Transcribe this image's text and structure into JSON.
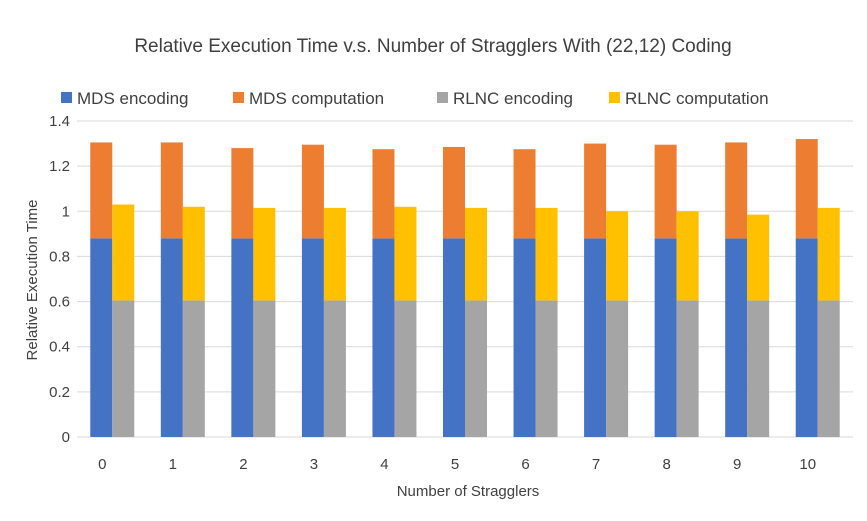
{
  "chart_data": {
    "type": "bar",
    "stacked": true,
    "title": "Relative Execution Time v.s. Number of Stragglers With (22,12) Coding",
    "xlabel": "Number of Stragglers",
    "ylabel": "Relative Execution Time",
    "ylim": [
      0,
      1.4
    ],
    "yticks": [
      "0",
      "0.2",
      "0.4",
      "0.6",
      "0.8",
      "1",
      "1.2",
      "1.4"
    ],
    "grid": true,
    "legend_position": "top",
    "categories": [
      "0",
      "1",
      "2",
      "3",
      "4",
      "5",
      "6",
      "7",
      "8",
      "9",
      "10"
    ],
    "groups": [
      {
        "stack": "MDS",
        "series": [
          {
            "name": "MDS encoding",
            "color": "#4472c4",
            "values": [
              0.88,
              0.88,
              0.88,
              0.88,
              0.88,
              0.88,
              0.88,
              0.88,
              0.88,
              0.88,
              0.88
            ]
          },
          {
            "name": "MDS computation",
            "color": "#ed7d31",
            "values": [
              0.425,
              0.425,
              0.4,
              0.415,
              0.395,
              0.405,
              0.395,
              0.42,
              0.415,
              0.425,
              0.44
            ]
          }
        ]
      },
      {
        "stack": "RLNC",
        "series": [
          {
            "name": "RLNC encoding",
            "color": "#a5a5a5",
            "values": [
              0.605,
              0.605,
              0.605,
              0.605,
              0.605,
              0.605,
              0.605,
              0.605,
              0.605,
              0.605,
              0.605
            ]
          },
          {
            "name": "RLNC computation",
            "color": "#ffc000",
            "values": [
              0.425,
              0.415,
              0.41,
              0.41,
              0.415,
              0.41,
              0.41,
              0.395,
              0.395,
              0.38,
              0.41
            ]
          }
        ]
      }
    ]
  }
}
